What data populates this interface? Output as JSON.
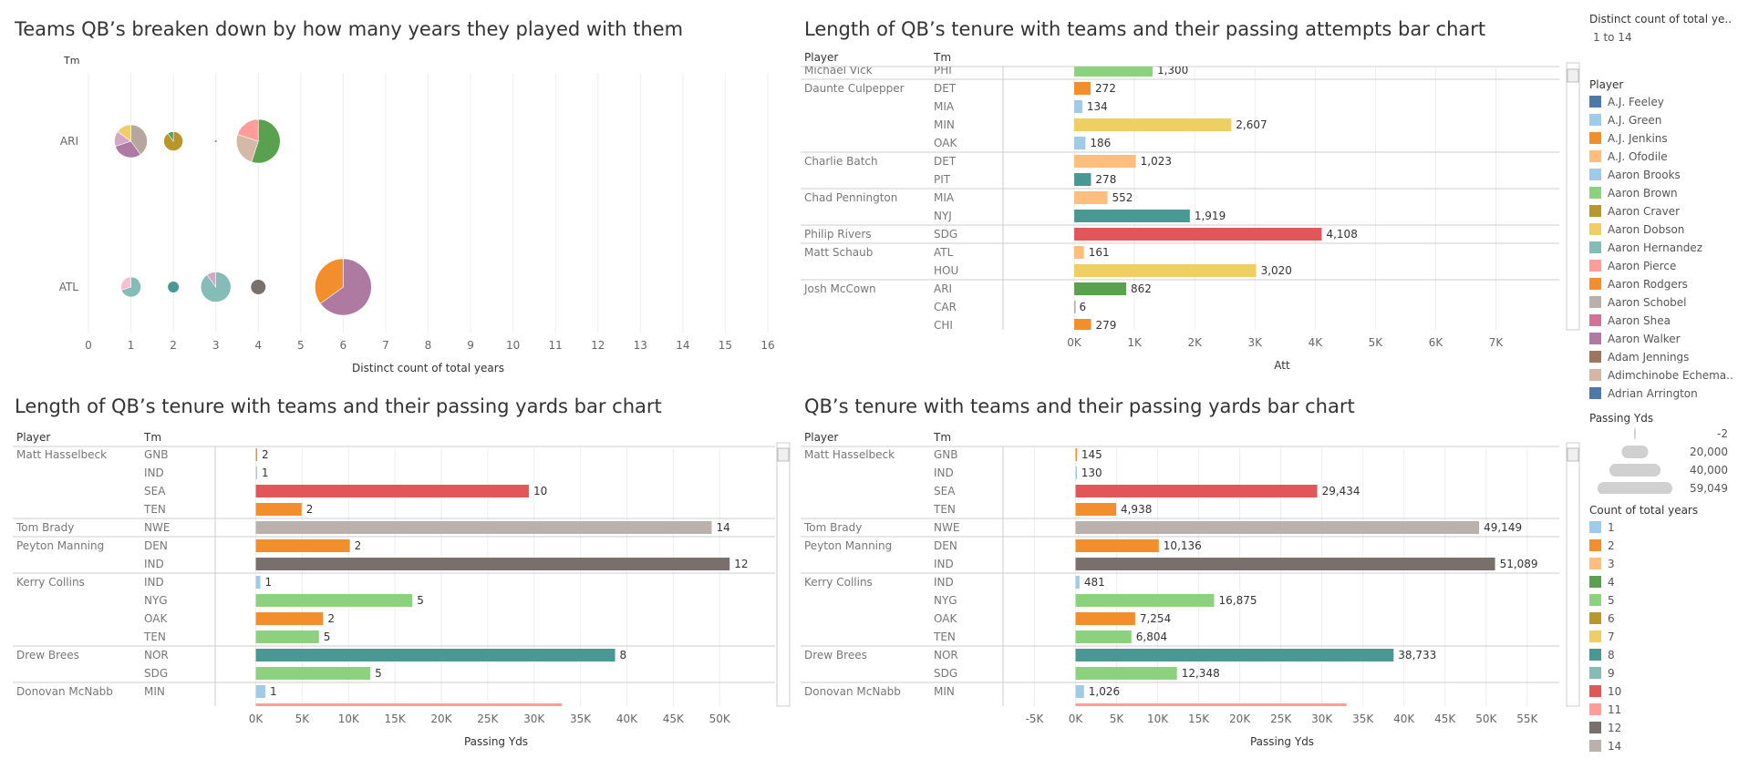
{
  "chart_data": [
    {
      "type": "scatter",
      "title": "Teams QB’s breaken down by how many years they played with them",
      "row_header": "Tm",
      "xlabel": "Distinct count of total years",
      "xlim": [
        0,
        16
      ],
      "xticks": [
        "0",
        "1",
        "2",
        "3",
        "4",
        "5",
        "6",
        "7",
        "8",
        "9",
        "10",
        "11",
        "12",
        "13",
        "14",
        "15",
        "16"
      ],
      "rows": [
        {
          "team": "ARI",
          "pies": [
            {
              "x": 1,
              "size": 36,
              "slices": [
                {
                  "v": 40,
                  "c": "#b5a79e"
                },
                {
                  "v": 30,
                  "c": "#af7aa1"
                },
                {
                  "v": 15,
                  "c": "#d4a6c8"
                },
                {
                  "v": 15,
                  "c": "#f1ce63"
                }
              ]
            },
            {
              "x": 2,
              "size": 21,
              "slices": [
                {
                  "v": 90,
                  "c": "#b9962c"
                },
                {
                  "v": 10,
                  "c": "#59a14f"
                }
              ]
            },
            {
              "x": 3,
              "size": 2,
              "slices": [
                {
                  "v": 100,
                  "c": "#4e79a7"
                }
              ]
            },
            {
              "x": 4,
              "size": 48,
              "slices": [
                {
                  "v": 55,
                  "c": "#59a14f"
                },
                {
                  "v": 25,
                  "c": "#d4b8a8"
                },
                {
                  "v": 20,
                  "c": "#ff9d9a"
                }
              ]
            }
          ]
        },
        {
          "team": "ATL",
          "pies": [
            {
              "x": 1,
              "size": 22,
              "slices": [
                {
                  "v": 70,
                  "c": "#86bcb6"
                },
                {
                  "v": 30,
                  "c": "#fabfd2"
                }
              ]
            },
            {
              "x": 2,
              "size": 12,
              "slices": [
                {
                  "v": 100,
                  "c": "#499894"
                }
              ]
            },
            {
              "x": 3,
              "size": 33,
              "slices": [
                {
                  "v": 90,
                  "c": "#86bcb6"
                },
                {
                  "v": 10,
                  "c": "#d4a6c8"
                }
              ]
            },
            {
              "x": 4,
              "size": 16,
              "slices": [
                {
                  "v": 100,
                  "c": "#79706e"
                }
              ]
            },
            {
              "x": 6,
              "size": 62,
              "slices": [
                {
                  "v": 65,
                  "c": "#af7aa1"
                },
                {
                  "v": 35,
                  "c": "#f28e2b"
                }
              ]
            }
          ]
        }
      ]
    },
    {
      "type": "bar",
      "title": "Length of QB’s tenure with teams and their passing attempts bar chart",
      "headers": [
        "Player",
        "Tm"
      ],
      "xlabel": "Att",
      "xlim": [
        -1000,
        7900
      ],
      "xticks": [
        {
          "v": 0,
          "t": "0K"
        },
        {
          "v": 1000,
          "t": "1K"
        },
        {
          "v": 2000,
          "t": "2K"
        },
        {
          "v": 3000,
          "t": "3K"
        },
        {
          "v": 4000,
          "t": "4K"
        },
        {
          "v": 5000,
          "t": "5K"
        },
        {
          "v": 6000,
          "t": "6K"
        },
        {
          "v": 7000,
          "t": "7K"
        }
      ],
      "rows": [
        {
          "player": "Michael Vick",
          "tm": "PHI",
          "v": 1300,
          "label": "1,300",
          "c": "#8cd17d"
        },
        {
          "player": "Daunte Culpepper",
          "tm": "DET",
          "v": 272,
          "label": "272",
          "c": "#f28e2b"
        },
        {
          "player": "",
          "tm": "MIA",
          "v": 134,
          "label": "134",
          "c": "#a0cbe8"
        },
        {
          "player": "",
          "tm": "MIN",
          "v": 2607,
          "label": "2,607",
          "c": "#f1ce63"
        },
        {
          "player": "",
          "tm": "OAK",
          "v": 186,
          "label": "186",
          "c": "#a0cbe8"
        },
        {
          "player": "Charlie Batch",
          "tm": "DET",
          "v": 1023,
          "label": "1,023",
          "c": "#ffbe7d"
        },
        {
          "player": "",
          "tm": "PIT",
          "v": 278,
          "label": "278",
          "c": "#499894"
        },
        {
          "player": "Chad Pennington",
          "tm": "MIA",
          "v": 552,
          "label": "552",
          "c": "#ffbe7d"
        },
        {
          "player": "",
          "tm": "NYJ",
          "v": 1919,
          "label": "1,919",
          "c": "#499894"
        },
        {
          "player": "Philip Rivers",
          "tm": "SDG",
          "v": 4108,
          "label": "4,108",
          "c": "#e15759"
        },
        {
          "player": "Matt Schaub",
          "tm": "ATL",
          "v": 161,
          "label": "161",
          "c": "#ffbe7d"
        },
        {
          "player": "",
          "tm": "HOU",
          "v": 3020,
          "label": "3,020",
          "c": "#f1ce63"
        },
        {
          "player": "Josh McCown",
          "tm": "ARI",
          "v": 862,
          "label": "862",
          "c": "#59a14f"
        },
        {
          "player": "",
          "tm": "CAR",
          "v": 6,
          "label": "6",
          "c": "#b5a79e"
        },
        {
          "player": "",
          "tm": "CHI",
          "v": 279,
          "label": "279",
          "c": "#f28e2b"
        }
      ]
    },
    {
      "type": "bar",
      "title": "Length of QB’s tenure with teams and their passing yards bar chart",
      "headers": [
        "Player",
        "Tm"
      ],
      "xlabel": "Passing Yds",
      "xlim": [
        -3200,
        55000
      ],
      "xticks": [
        {
          "v": 0,
          "t": "0K"
        },
        {
          "v": 5000,
          "t": "5K"
        },
        {
          "v": 10000,
          "t": "10K"
        },
        {
          "v": 15000,
          "t": "15K"
        },
        {
          "v": 20000,
          "t": "20K"
        },
        {
          "v": 25000,
          "t": "25K"
        },
        {
          "v": 30000,
          "t": "30K"
        },
        {
          "v": 35000,
          "t": "35K"
        },
        {
          "v": 40000,
          "t": "40K"
        },
        {
          "v": 45000,
          "t": "45K"
        },
        {
          "v": 50000,
          "t": "50K"
        }
      ],
      "rows": [
        {
          "player": "Matt Hasselbeck",
          "tm": "GNB",
          "v": 145,
          "label": "2",
          "c": "#f28e2b"
        },
        {
          "player": "",
          "tm": "IND",
          "v": 130,
          "label": "1",
          "c": "#a0cbe8"
        },
        {
          "player": "",
          "tm": "SEA",
          "v": 29434,
          "label": "10",
          "c": "#e15759"
        },
        {
          "player": "",
          "tm": "TEN",
          "v": 4938,
          "label": "2",
          "c": "#f28e2b"
        },
        {
          "player": "Tom Brady",
          "tm": "NWE",
          "v": 49149,
          "label": "14",
          "c": "#bab0ac"
        },
        {
          "player": "Peyton Manning",
          "tm": "DEN",
          "v": 10136,
          "label": "2",
          "c": "#f28e2b"
        },
        {
          "player": "",
          "tm": "IND",
          "v": 51089,
          "label": "12",
          "c": "#79706e"
        },
        {
          "player": "Kerry Collins",
          "tm": "IND",
          "v": 481,
          "label": "1",
          "c": "#a0cbe8"
        },
        {
          "player": "",
          "tm": "NYG",
          "v": 16875,
          "label": "5",
          "c": "#8cd17d"
        },
        {
          "player": "",
          "tm": "OAK",
          "v": 7254,
          "label": "2",
          "c": "#f28e2b"
        },
        {
          "player": "",
          "tm": "TEN",
          "v": 6804,
          "label": "5",
          "c": "#8cd17d"
        },
        {
          "player": "Drew Brees",
          "tm": "NOR",
          "v": 38733,
          "label": "8",
          "c": "#499894"
        },
        {
          "player": "",
          "tm": "SDG",
          "v": 12348,
          "label": "5",
          "c": "#8cd17d"
        },
        {
          "player": "Donovan McNabb",
          "tm": "MIN",
          "v": 1026,
          "label": "1",
          "c": "#a0cbe8"
        },
        {
          "player": "",
          "tm": "",
          "v": 33000,
          "label": "",
          "c": "#ff9d9a"
        }
      ]
    },
    {
      "type": "bar",
      "title": "QB’s tenure with teams and their passing yards bar chart",
      "headers": [
        "Player",
        "Tm"
      ],
      "xlabel": "Passing Yds",
      "xlim": [
        -7500,
        57800
      ],
      "xticks": [
        {
          "v": -5000,
          "t": "-5K"
        },
        {
          "v": 0,
          "t": "0K"
        },
        {
          "v": 5000,
          "t": "5K"
        },
        {
          "v": 10000,
          "t": "10K"
        },
        {
          "v": 15000,
          "t": "15K"
        },
        {
          "v": 20000,
          "t": "20K"
        },
        {
          "v": 25000,
          "t": "25K"
        },
        {
          "v": 30000,
          "t": "30K"
        },
        {
          "v": 35000,
          "t": "35K"
        },
        {
          "v": 40000,
          "t": "40K"
        },
        {
          "v": 45000,
          "t": "45K"
        },
        {
          "v": 50000,
          "t": "50K"
        },
        {
          "v": 55000,
          "t": "55K"
        }
      ],
      "rows": [
        {
          "player": "Matt Hasselbeck",
          "tm": "GNB",
          "v": 145,
          "label": "145",
          "c": "#f28e2b"
        },
        {
          "player": "",
          "tm": "IND",
          "v": 130,
          "label": "130",
          "c": "#a0cbe8"
        },
        {
          "player": "",
          "tm": "SEA",
          "v": 29434,
          "label": "29,434",
          "c": "#e15759"
        },
        {
          "player": "",
          "tm": "TEN",
          "v": 4938,
          "label": "4,938",
          "c": "#f28e2b"
        },
        {
          "player": "Tom Brady",
          "tm": "NWE",
          "v": 49149,
          "label": "49,149",
          "c": "#bab0ac"
        },
        {
          "player": "Peyton Manning",
          "tm": "DEN",
          "v": 10136,
          "label": "10,136",
          "c": "#f28e2b"
        },
        {
          "player": "",
          "tm": "IND",
          "v": 51089,
          "label": "51,089",
          "c": "#79706e"
        },
        {
          "player": "Kerry Collins",
          "tm": "IND",
          "v": 481,
          "label": "481",
          "c": "#a0cbe8"
        },
        {
          "player": "",
          "tm": "NYG",
          "v": 16875,
          "label": "16,875",
          "c": "#8cd17d"
        },
        {
          "player": "",
          "tm": "OAK",
          "v": 7254,
          "label": "7,254",
          "c": "#f28e2b"
        },
        {
          "player": "",
          "tm": "TEN",
          "v": 6804,
          "label": "6,804",
          "c": "#8cd17d"
        },
        {
          "player": "Drew Brees",
          "tm": "NOR",
          "v": 38733,
          "label": "38,733",
          "c": "#499894"
        },
        {
          "player": "",
          "tm": "SDG",
          "v": 12348,
          "label": "12,348",
          "c": "#8cd17d"
        },
        {
          "player": "Donovan McNabb",
          "tm": "MIN",
          "v": 1026,
          "label": "1,026",
          "c": "#a0cbe8"
        },
        {
          "player": "",
          "tm": "",
          "v": 33000,
          "label": "",
          "c": "#ff9d9a"
        }
      ]
    }
  ],
  "legend": {
    "filter_title": "Distinct count of total ye..",
    "filter_value": "1 to 14",
    "player_title": "Player",
    "players": [
      {
        "name": "A.J. Feeley",
        "c": "#4e79a7"
      },
      {
        "name": "A.J. Green",
        "c": "#a0cbe8"
      },
      {
        "name": "A.J. Jenkins",
        "c": "#f28e2b"
      },
      {
        "name": "A.J. Ofodile",
        "c": "#ffbe7d"
      },
      {
        "name": "Aaron Brooks",
        "c": "#a0cbe8"
      },
      {
        "name": "Aaron Brown",
        "c": "#8cd17d"
      },
      {
        "name": "Aaron Craver",
        "c": "#b6992d"
      },
      {
        "name": "Aaron Dobson",
        "c": "#f1ce63"
      },
      {
        "name": "Aaron Hernandez",
        "c": "#86bcb6"
      },
      {
        "name": "Aaron Pierce",
        "c": "#ff9d9a"
      },
      {
        "name": "Aaron Rodgers",
        "c": "#f28e2b"
      },
      {
        "name": "Aaron Schobel",
        "c": "#bab0ac"
      },
      {
        "name": "Aaron Shea",
        "c": "#d37295"
      },
      {
        "name": "Aaron Walker",
        "c": "#af7aa1"
      },
      {
        "name": "Adam Jennings",
        "c": "#9d7660"
      },
      {
        "name": "Adimchinobe Echema..",
        "c": "#d7b5a6"
      },
      {
        "name": "Adrian Arrington",
        "c": "#4e79a7"
      }
    ],
    "size_title": "Passing Yds",
    "sizes": [
      {
        "label": "-2",
        "v": 0
      },
      {
        "label": "20,000",
        "v": 20000
      },
      {
        "label": "40,000",
        "v": 40000
      },
      {
        "label": "59,049",
        "v": 59049
      }
    ],
    "count_title": "Count of total years",
    "counts": [
      {
        "name": "1",
        "c": "#a0cbe8"
      },
      {
        "name": "2",
        "c": "#f28e2b"
      },
      {
        "name": "3",
        "c": "#ffbe7d"
      },
      {
        "name": "4",
        "c": "#59a14f"
      },
      {
        "name": "5",
        "c": "#8cd17d"
      },
      {
        "name": "6",
        "c": "#b6992d"
      },
      {
        "name": "7",
        "c": "#f1ce63"
      },
      {
        "name": "8",
        "c": "#499894"
      },
      {
        "name": "9",
        "c": "#86bcb6"
      },
      {
        "name": "10",
        "c": "#e15759"
      },
      {
        "name": "11",
        "c": "#ff9d9a"
      },
      {
        "name": "12",
        "c": "#79706e"
      },
      {
        "name": "14",
        "c": "#bab0ac"
      }
    ]
  }
}
